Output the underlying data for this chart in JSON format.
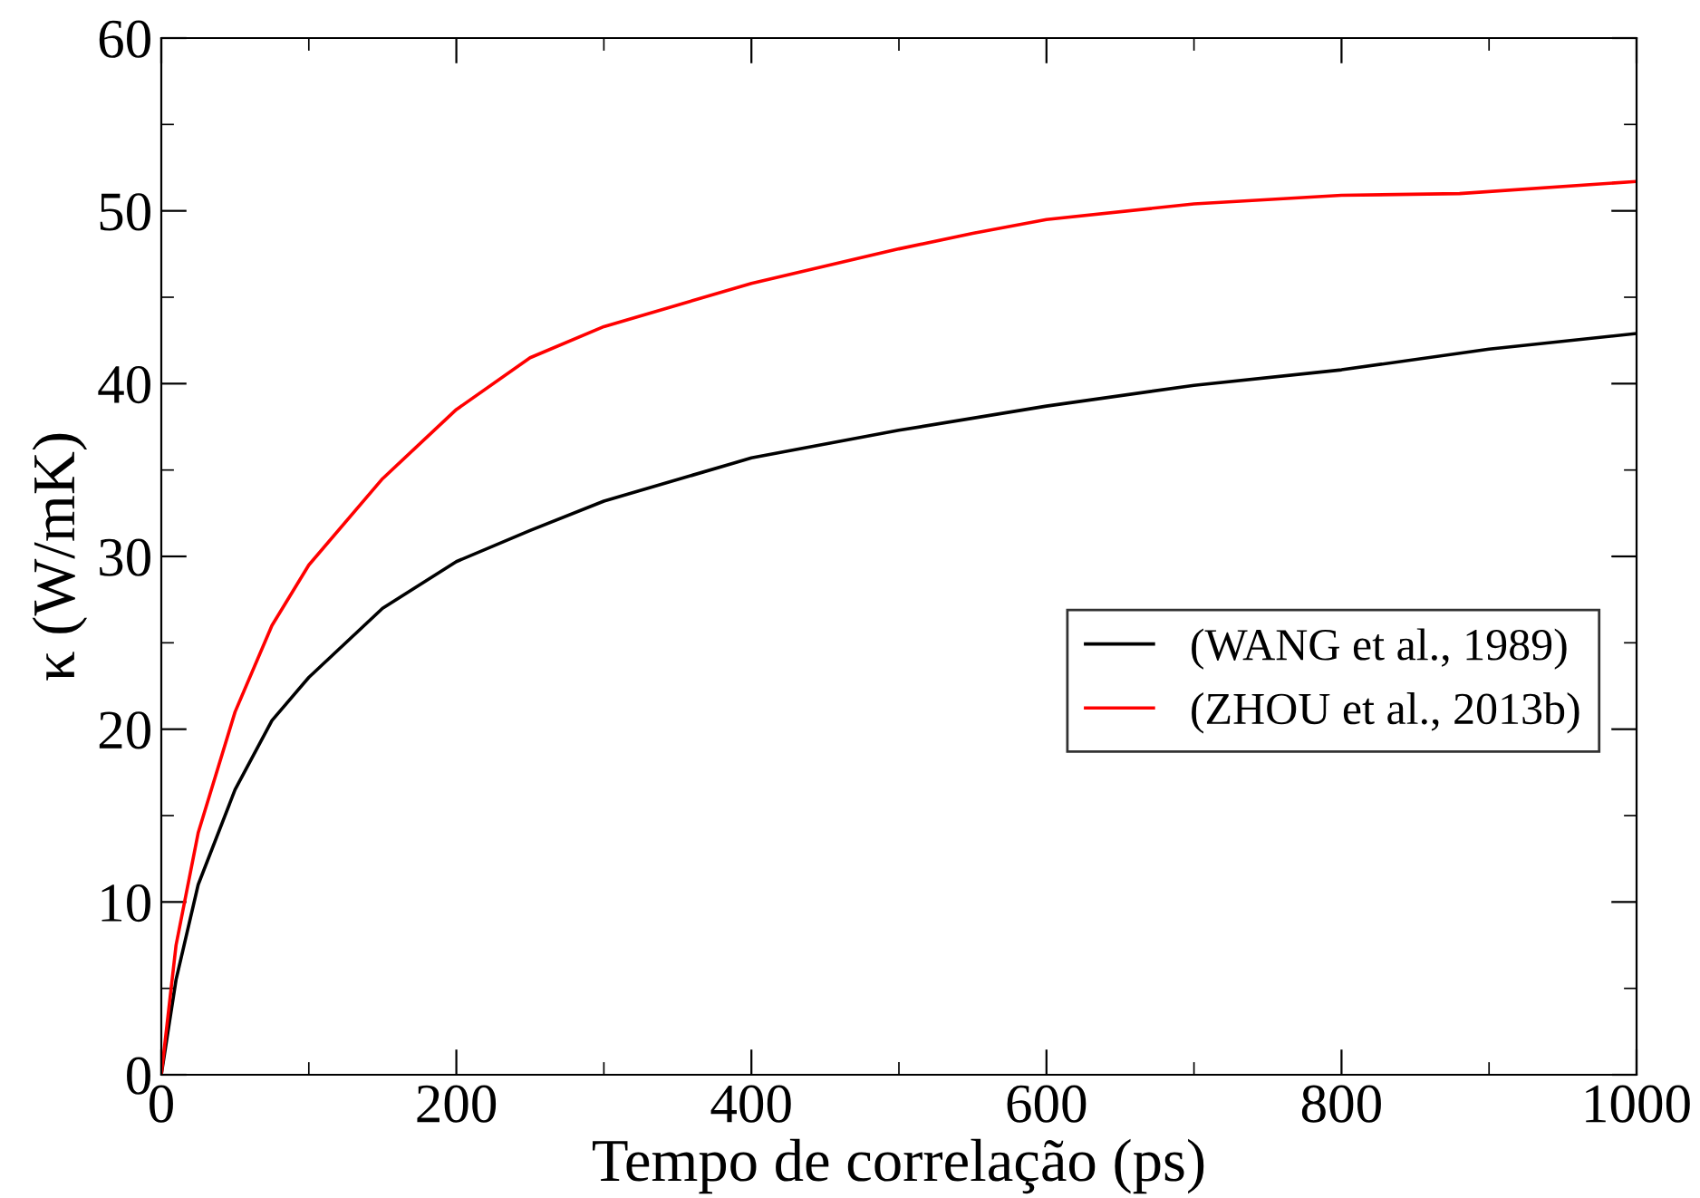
{
  "chart_data": {
    "type": "line",
    "xlabel": "Tempo de correlação (ps)",
    "ylabel": "κ (W/mK)",
    "xlim": [
      0,
      1000
    ],
    "ylim": [
      0,
      60
    ],
    "xticks": [
      0,
      {
        "value": 100,
        "label": null
      },
      200,
      {
        "value": 300,
        "label": null
      },
      400,
      {
        "value": 500,
        "label": null
      },
      600,
      {
        "value": 700,
        "label": null
      },
      800,
      {
        "value": 900,
        "label": null
      },
      1000
    ],
    "yticks": [
      0,
      {
        "value": 5,
        "label": null
      },
      10,
      {
        "value": 15,
        "label": null
      },
      20,
      {
        "value": 25,
        "label": null
      },
      30,
      {
        "value": 35,
        "label": null
      },
      40,
      {
        "value": 45,
        "label": null
      },
      50,
      {
        "value": 55,
        "label": null
      },
      60
    ],
    "grid": false,
    "legend": "right",
    "marker": "none",
    "line_style": "solid",
    "series": [
      {
        "name": "(WANG et al., 1989)",
        "color": "#000000",
        "x": [
          0,
          10,
          25,
          50,
          75,
          100,
          150,
          200,
          250,
          300,
          400,
          500,
          600,
          700,
          800,
          900,
          1000
        ],
        "values": [
          0,
          5.5,
          11,
          16.5,
          20.5,
          23,
          27,
          29.7,
          31.5,
          33.2,
          35.7,
          37.3,
          38.7,
          39.9,
          40.8,
          42,
          42.9
        ]
      },
      {
        "name": "(ZHOU et al., 2013b)",
        "color": "#ff0000",
        "x": [
          0,
          10,
          25,
          50,
          75,
          100,
          150,
          200,
          250,
          300,
          400,
          500,
          550,
          600,
          700,
          800,
          880,
          1000
        ],
        "values": [
          0,
          7.5,
          14,
          21,
          26,
          29.5,
          34.5,
          38.5,
          41.5,
          43.3,
          45.8,
          47.8,
          48.7,
          49.5,
          50.4,
          50.9,
          51,
          51.7
        ]
      }
    ]
  }
}
